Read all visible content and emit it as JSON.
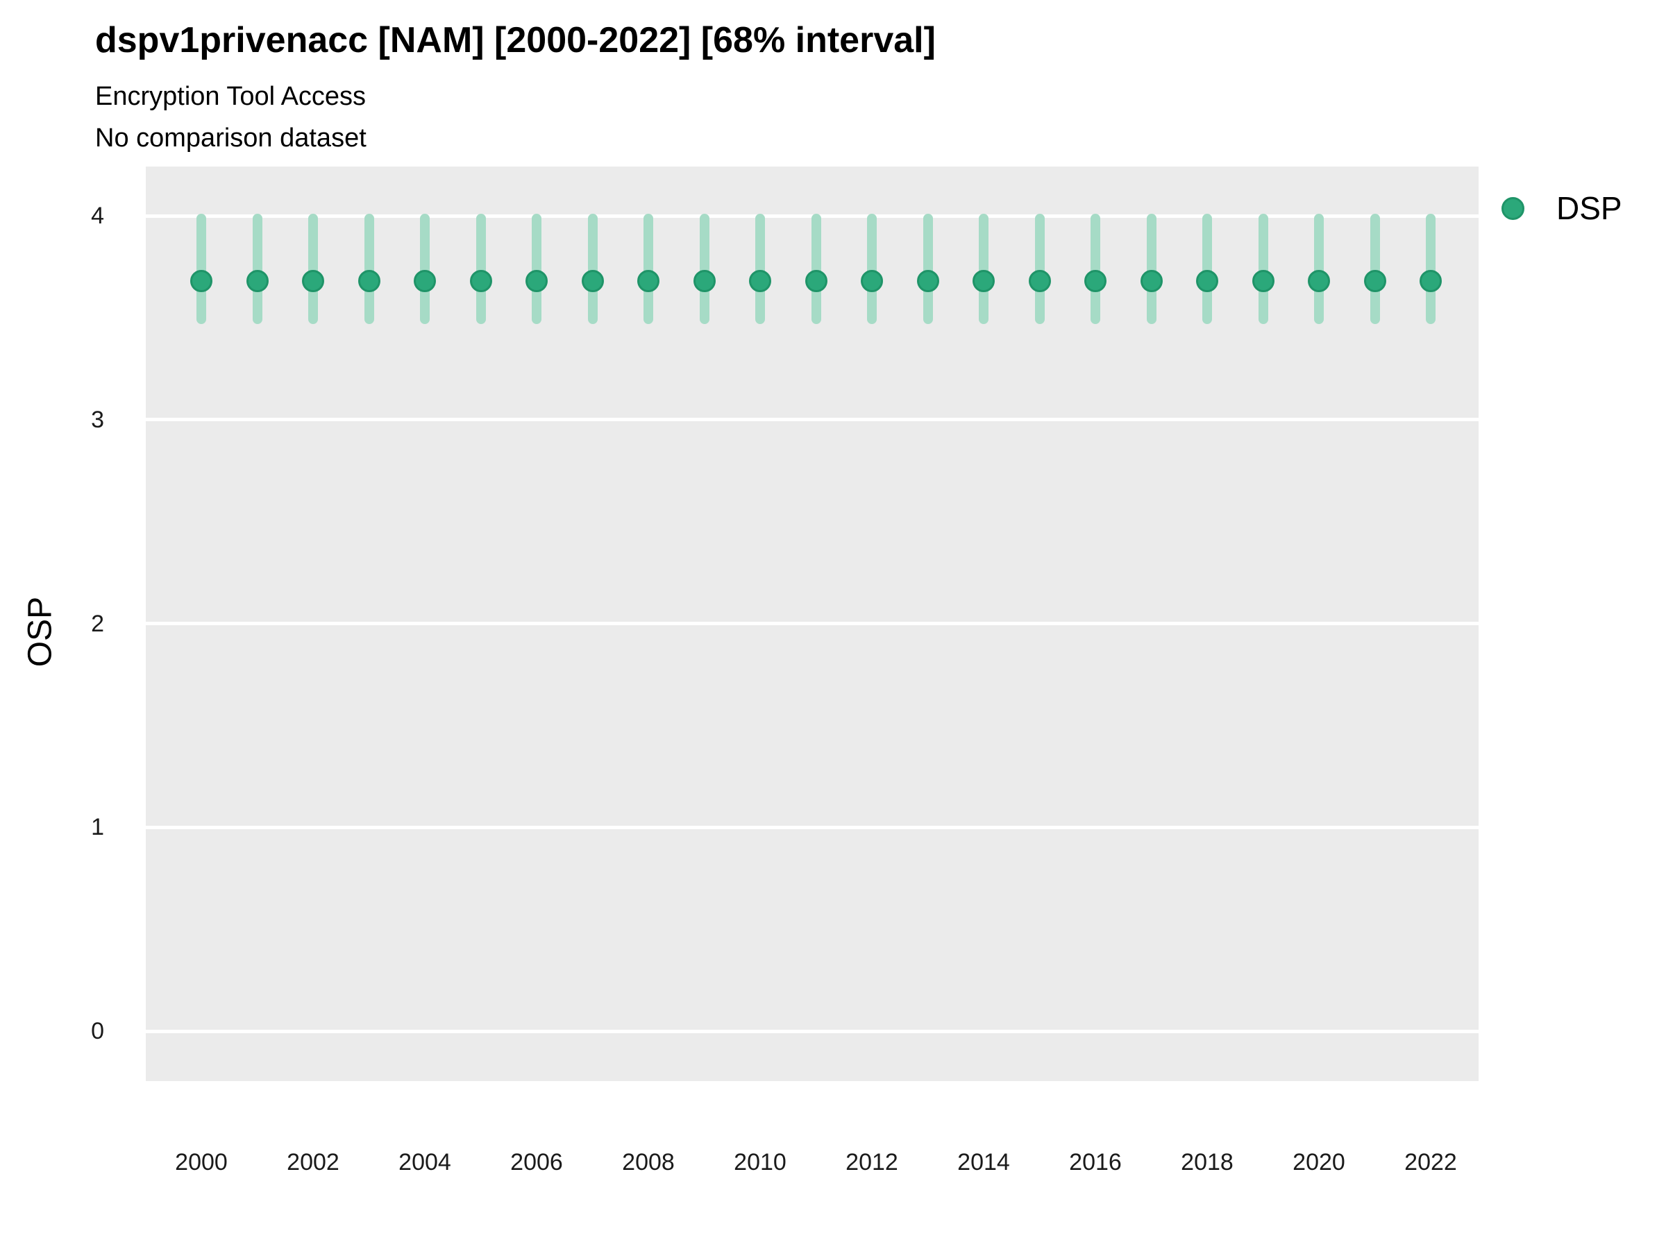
{
  "header": {
    "title": "dspv1privenacc [NAM] [2000-2022] [68% interval]",
    "subtitle": "Encryption Tool Access",
    "comparison_note": "No comparison dataset"
  },
  "axes": {
    "y_label": "OSP",
    "y_ticks": [
      0,
      1,
      2,
      3,
      4
    ],
    "x_ticks": [
      2000,
      2002,
      2004,
      2006,
      2008,
      2010,
      2012,
      2014,
      2016,
      2018,
      2020,
      2022
    ]
  },
  "legend": {
    "items": [
      {
        "label": "DSP",
        "color": "#2ba87a"
      }
    ]
  },
  "colors": {
    "point_fill": "#2ba87a",
    "point_stroke": "#1f9468",
    "interval_bar": "#a6dbc6",
    "panel_bg": "#ebebeb",
    "gridline": "#ffffff",
    "text": "#000000"
  },
  "chart_data": {
    "type": "scatter",
    "title": "dspv1privenacc [NAM] [2000-2022] [68% interval]",
    "subtitle": "Encryption Tool Access",
    "note": "No comparison dataset",
    "xlabel": "",
    "ylabel": "OSP",
    "xlim": [
      1999.0,
      2022.9
    ],
    "ylim": [
      -0.25,
      4.25
    ],
    "grid": "horizontal-white-on-gray",
    "legend_position": "right",
    "interval_level": "68%",
    "x": [
      2000,
      2001,
      2002,
      2003,
      2004,
      2005,
      2006,
      2007,
      2008,
      2009,
      2010,
      2011,
      2012,
      2013,
      2014,
      2015,
      2016,
      2017,
      2018,
      2019,
      2020,
      2021,
      2022
    ],
    "series": [
      {
        "name": "DSP",
        "values": [
          3.68,
          3.68,
          3.68,
          3.68,
          3.68,
          3.68,
          3.68,
          3.68,
          3.68,
          3.68,
          3.68,
          3.68,
          3.68,
          3.68,
          3.68,
          3.68,
          3.68,
          3.68,
          3.68,
          3.68,
          3.68,
          3.68,
          3.68
        ],
        "interval_low": [
          3.47,
          3.47,
          3.47,
          3.47,
          3.47,
          3.47,
          3.47,
          3.47,
          3.47,
          3.47,
          3.47,
          3.47,
          3.47,
          3.47,
          3.47,
          3.47,
          3.47,
          3.47,
          3.47,
          3.47,
          3.47,
          3.47,
          3.47
        ],
        "interval_high": [
          4.01,
          4.01,
          4.01,
          4.01,
          4.01,
          4.01,
          4.01,
          4.01,
          4.01,
          4.01,
          4.01,
          4.01,
          4.01,
          4.01,
          4.01,
          4.01,
          4.01,
          4.01,
          4.01,
          4.01,
          4.01,
          4.01,
          4.01
        ]
      }
    ]
  }
}
